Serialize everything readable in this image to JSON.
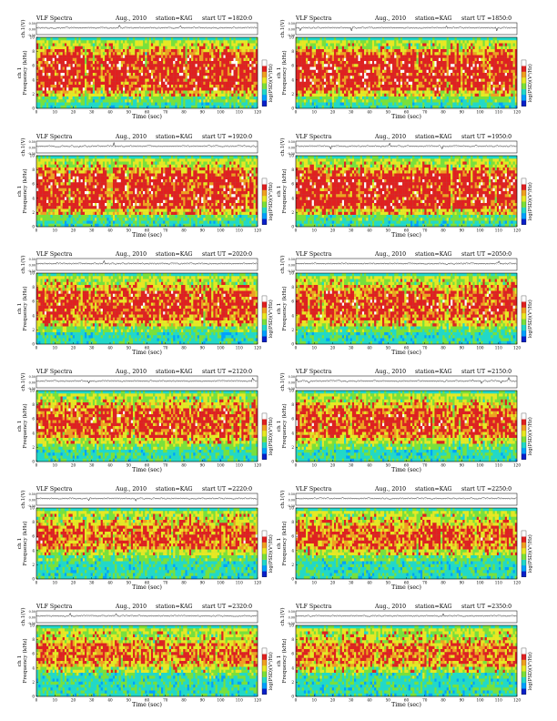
{
  "header": {
    "title": "VLF Spectra",
    "date": "Aug., 2010",
    "station": "station=KAG",
    "ut_prefix": "start  UT ="
  },
  "colorbar": {
    "label": "log(PSD)(V²/Hz)",
    "stops": [
      "#0a20c8",
      "#00a0ff",
      "#22d8c8",
      "#7ae03a",
      "#e8e822",
      "#f0a020",
      "#e02020",
      "#ffffff"
    ]
  },
  "chart_data": [
    {
      "type": "heatmap",
      "panel": "1",
      "start_ut": "1820:0",
      "title": "VLF Spectra",
      "date": "Aug., 2010",
      "station": "station=KAG",
      "xlabel": "Time  (sec)",
      "ylabel": "Frequency  (kHz)",
      "ch_label": "ch 1",
      "ch_ylabel": "ch.1(V)",
      "ch_ylim": [
        -0.5,
        0.5
      ],
      "ch_ticks": [
        "0.50",
        "0.00",
        "-0.50"
      ],
      "xlim": [
        0,
        120
      ],
      "ylim": [
        0,
        10
      ],
      "x_ticks": [
        0,
        10,
        20,
        30,
        40,
        50,
        60,
        70,
        80,
        90,
        100,
        110,
        120
      ],
      "y_ticks": [
        0,
        2,
        4,
        6,
        8,
        10
      ],
      "intensity_profile": "very strong 2-9 kHz, white saturation",
      "fill": [
        0.15,
        0.25,
        0.55,
        0.92,
        0.98,
        0.98,
        0.97,
        0.97,
        0.95,
        0.7,
        0.42,
        0.42
      ]
    },
    {
      "type": "heatmap",
      "panel": "2",
      "start_ut": "1850:0",
      "title": "VLF Spectra",
      "date": "Aug., 2010",
      "station": "station=KAG",
      "xlabel": "Time  (sec)",
      "ylabel": "Frequency  (kHz)",
      "ch_label": "ch 1",
      "ch_ylabel": "ch.1(V)",
      "ch_ylim": [
        -0.5,
        0.5
      ],
      "ch_ticks": [
        "0.50",
        "0.00",
        "-0.50"
      ],
      "xlim": [
        0,
        120
      ],
      "ylim": [
        0,
        10
      ],
      "x_ticks": [
        0,
        10,
        20,
        30,
        40,
        50,
        60,
        70,
        80,
        90,
        100,
        110,
        120
      ],
      "y_ticks": [
        0,
        2,
        4,
        6,
        8,
        10
      ],
      "intensity_profile": "very strong 2-9 kHz, white saturation",
      "fill": [
        0.15,
        0.25,
        0.55,
        0.92,
        0.98,
        0.98,
        0.97,
        0.97,
        0.95,
        0.7,
        0.42,
        0.42
      ]
    },
    {
      "type": "heatmap",
      "panel": "3",
      "start_ut": "1920:0",
      "title": "VLF Spectra",
      "date": "Aug., 2010",
      "station": "station=KAG",
      "xlabel": "Time  (sec)",
      "ylabel": "Frequency  (kHz)",
      "ch_label": "ch 1",
      "ch_ylabel": "ch.1(V)",
      "ch_ylim": [
        -0.5,
        0.5
      ],
      "ch_ticks": [
        "0.50",
        "0.00",
        "-0.50"
      ],
      "xlim": [
        0,
        120
      ],
      "ylim": [
        0,
        10
      ],
      "x_ticks": [
        0,
        10,
        20,
        30,
        40,
        50,
        60,
        70,
        80,
        90,
        100,
        110,
        120
      ],
      "y_ticks": [
        0,
        2,
        4,
        6,
        8,
        10
      ],
      "intensity_profile": "very strong 2-9 kHz, white saturation",
      "fill": [
        0.15,
        0.25,
        0.6,
        0.93,
        0.98,
        0.98,
        0.97,
        0.97,
        0.95,
        0.7,
        0.42,
        0.42
      ]
    },
    {
      "type": "heatmap",
      "panel": "4",
      "start_ut": "1950:0",
      "title": "VLF Spectra",
      "date": "Aug., 2010",
      "station": "station=KAG",
      "xlabel": "Time  (sec)",
      "ylabel": "Frequency  (kHz)",
      "ch_label": "ch 1",
      "ch_ylabel": "ch.1(V)",
      "ch_ylim": [
        -0.5,
        0.5
      ],
      "ch_ticks": [
        "0.50",
        "0.00",
        "-0.50"
      ],
      "xlim": [
        0,
        120
      ],
      "ylim": [
        0,
        10
      ],
      "x_ticks": [
        0,
        10,
        20,
        30,
        40,
        50,
        60,
        70,
        80,
        90,
        100,
        110,
        120
      ],
      "y_ticks": [
        0,
        2,
        4,
        6,
        8,
        10
      ],
      "intensity_profile": "very strong 2-9 kHz, white saturation",
      "fill": [
        0.15,
        0.25,
        0.6,
        0.93,
        0.98,
        0.98,
        0.97,
        0.97,
        0.95,
        0.7,
        0.42,
        0.42
      ]
    },
    {
      "type": "heatmap",
      "panel": "5",
      "start_ut": "2020:0",
      "title": "VLF Spectra",
      "date": "Aug., 2010",
      "station": "station=KAG",
      "xlabel": "Time  (sec)",
      "ylabel": "Frequency  (kHz)",
      "ch_label": "ch 1",
      "ch_ylabel": "ch.1(V)",
      "ch_ylim": [
        -0.5,
        0.5
      ],
      "ch_ticks": [
        "0.50",
        "0.00",
        "-0.50"
      ],
      "xlim": [
        0,
        120
      ],
      "ylim": [
        0,
        10
      ],
      "x_ticks": [
        0,
        10,
        20,
        30,
        40,
        50,
        60,
        70,
        80,
        90,
        100,
        110,
        120
      ],
      "y_ticks": [
        0,
        2,
        4,
        6,
        8,
        10
      ],
      "intensity_profile": "strong 3-9 kHz, green below 3 kHz",
      "fill": [
        0.1,
        0.15,
        0.3,
        0.55,
        0.8,
        0.9,
        0.9,
        0.88,
        0.85,
        0.6,
        0.4,
        0.42
      ]
    },
    {
      "type": "heatmap",
      "panel": "6",
      "start_ut": "2050:0",
      "title": "VLF Spectra",
      "date": "Aug., 2010",
      "station": "station=KAG",
      "xlabel": "Time  (sec)",
      "ylabel": "Frequency  (kHz)",
      "ch_label": "ch 1",
      "ch_ylabel": "ch.1(V)",
      "ch_ylim": [
        -0.5,
        0.5
      ],
      "ch_ticks": [
        "0.50",
        "0.00",
        "-0.50"
      ],
      "xlim": [
        0,
        120
      ],
      "ylim": [
        0,
        10
      ],
      "x_ticks": [
        0,
        10,
        20,
        30,
        40,
        50,
        60,
        70,
        80,
        90,
        100,
        110,
        120
      ],
      "y_ticks": [
        0,
        2,
        4,
        6,
        8,
        10
      ],
      "intensity_profile": "strong 3-9 kHz, green below 3 kHz",
      "fill": [
        0.1,
        0.15,
        0.3,
        0.55,
        0.8,
        0.9,
        0.9,
        0.88,
        0.85,
        0.6,
        0.4,
        0.42
      ]
    },
    {
      "type": "heatmap",
      "panel": "7",
      "start_ut": "2120:0",
      "title": "VLF Spectra",
      "date": "Aug., 2010",
      "station": "station=KAG",
      "xlabel": "Time  (sec)",
      "ylabel": "Frequency  (kHz)",
      "ch_label": "ch 1",
      "ch_ylabel": "ch.1(V)",
      "ch_ylim": [
        -0.5,
        0.5
      ],
      "ch_ticks": [
        "0.50",
        "0.00",
        "-0.50"
      ],
      "xlim": [
        0,
        120
      ],
      "ylim": [
        0,
        10
      ],
      "x_ticks": [
        0,
        10,
        20,
        30,
        40,
        50,
        60,
        70,
        80,
        90,
        100,
        110,
        120
      ],
      "y_ticks": [
        0,
        2,
        4,
        6,
        8,
        10
      ],
      "intensity_profile": "strong 3-9 kHz, green below 3 kHz",
      "fill": [
        0.08,
        0.12,
        0.25,
        0.45,
        0.72,
        0.85,
        0.87,
        0.86,
        0.82,
        0.58,
        0.4,
        0.42
      ]
    },
    {
      "type": "heatmap",
      "panel": "8",
      "start_ut": "2150:0",
      "title": "VLF Spectra",
      "date": "Aug., 2010",
      "station": "station=KAG",
      "xlabel": "Time  (sec)",
      "ylabel": "Frequency  (kHz)",
      "ch_label": "ch 1",
      "ch_ylabel": "ch.1(V)",
      "ch_ylim": [
        -0.5,
        0.5
      ],
      "ch_ticks": [
        "0.50",
        "0.00",
        "-0.50"
      ],
      "xlim": [
        0,
        120
      ],
      "ylim": [
        0,
        10
      ],
      "x_ticks": [
        0,
        10,
        20,
        30,
        40,
        50,
        60,
        70,
        80,
        90,
        100,
        110,
        120
      ],
      "y_ticks": [
        0,
        2,
        4,
        6,
        8,
        10
      ],
      "intensity_profile": "strong 3-9 kHz, green below 3 kHz",
      "fill": [
        0.08,
        0.12,
        0.25,
        0.45,
        0.72,
        0.85,
        0.87,
        0.86,
        0.82,
        0.58,
        0.4,
        0.42
      ]
    },
    {
      "type": "heatmap",
      "panel": "9",
      "start_ut": "2220:0",
      "title": "VLF Spectra",
      "date": "Aug., 2010",
      "station": "station=KAG",
      "xlabel": "Time  (sec)",
      "ylabel": "Frequency  (kHz)",
      "ch_label": "ch 1",
      "ch_ylabel": "ch.1(V)",
      "ch_ylim": [
        -0.5,
        0.5
      ],
      "ch_ticks": [
        "0.50",
        "0.00",
        "-0.50"
      ],
      "xlim": [
        0,
        120
      ],
      "ylim": [
        0,
        10
      ],
      "x_ticks": [
        0,
        10,
        20,
        30,
        40,
        50,
        60,
        70,
        80,
        90,
        100,
        110,
        120
      ],
      "y_ticks": [
        0,
        2,
        4,
        6,
        8,
        10
      ],
      "intensity_profile": "moderate 5-9 kHz, green below 4 kHz",
      "fill": [
        0.05,
        0.08,
        0.12,
        0.22,
        0.45,
        0.72,
        0.82,
        0.82,
        0.75,
        0.55,
        0.4,
        0.42
      ]
    },
    {
      "type": "heatmap",
      "panel": "10",
      "start_ut": "2250:0",
      "title": "VLF Spectra",
      "date": "Aug., 2010",
      "station": "station=KAG",
      "xlabel": "Time  (sec)",
      "ylabel": "Frequency  (kHz)",
      "ch_label": "ch 1",
      "ch_ylabel": "ch.1(V)",
      "ch_ylim": [
        -0.5,
        0.5
      ],
      "ch_ticks": [
        "0.50",
        "0.00",
        "-0.50"
      ],
      "xlim": [
        0,
        120
      ],
      "ylim": [
        0,
        10
      ],
      "x_ticks": [
        0,
        10,
        20,
        30,
        40,
        50,
        60,
        70,
        80,
        90,
        100,
        110,
        120
      ],
      "y_ticks": [
        0,
        2,
        4,
        6,
        8,
        10
      ],
      "intensity_profile": "moderate 5-9 kHz, green below 4 kHz",
      "fill": [
        0.05,
        0.08,
        0.12,
        0.22,
        0.45,
        0.72,
        0.82,
        0.82,
        0.75,
        0.55,
        0.4,
        0.42
      ]
    },
    {
      "type": "heatmap",
      "panel": "11",
      "start_ut": "2320:0",
      "title": "VLF Spectra",
      "date": "Aug., 2010",
      "station": "station=KAG",
      "xlabel": "Time  (sec)",
      "ylabel": "Frequency  (kHz)",
      "ch_label": "ch 1",
      "ch_ylabel": "ch.1(V)",
      "ch_ylim": [
        -0.5,
        0.5
      ],
      "ch_ticks": [
        "0.50",
        "0.00",
        "-0.50"
      ],
      "xlim": [
        0,
        120
      ],
      "ylim": [
        0,
        10
      ],
      "x_ticks": [
        0,
        10,
        20,
        30,
        40,
        50,
        60,
        70,
        80,
        90,
        100,
        110,
        120
      ],
      "y_ticks": [
        0,
        2,
        4,
        6,
        8,
        10
      ],
      "intensity_profile": "moderate 5-9 kHz, green below 4 kHz",
      "fill": [
        0.05,
        0.07,
        0.1,
        0.18,
        0.38,
        0.65,
        0.78,
        0.78,
        0.7,
        0.52,
        0.4,
        0.42
      ]
    },
    {
      "type": "heatmap",
      "panel": "12",
      "start_ut": "2350:0",
      "title": "VLF Spectra",
      "date": "Aug., 2010",
      "station": "station=KAG",
      "xlabel": "Time  (sec)",
      "ylabel": "Frequency  (kHz)",
      "ch_label": "ch 1",
      "ch_ylabel": "ch.1(V)",
      "ch_ylim": [
        -0.5,
        0.5
      ],
      "ch_ticks": [
        "0.50",
        "0.00",
        "-0.50"
      ],
      "xlim": [
        0,
        120
      ],
      "ylim": [
        0,
        10
      ],
      "x_ticks": [
        0,
        10,
        20,
        30,
        40,
        50,
        60,
        70,
        80,
        90,
        100,
        110,
        120
      ],
      "y_ticks": [
        0,
        2,
        4,
        6,
        8,
        10
      ],
      "intensity_profile": "moderate 5-9 kHz, green below 4 kHz",
      "fill": [
        0.05,
        0.07,
        0.1,
        0.18,
        0.38,
        0.65,
        0.78,
        0.78,
        0.7,
        0.52,
        0.4,
        0.42
      ]
    }
  ]
}
